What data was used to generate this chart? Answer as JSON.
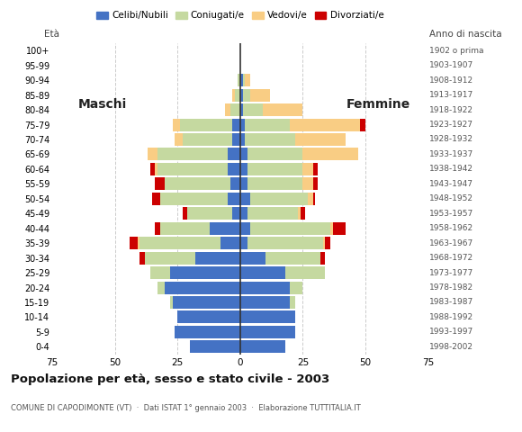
{
  "age_groups": [
    "0-4",
    "5-9",
    "10-14",
    "15-19",
    "20-24",
    "25-29",
    "30-34",
    "35-39",
    "40-44",
    "45-49",
    "50-54",
    "55-59",
    "60-64",
    "65-69",
    "70-74",
    "75-79",
    "80-84",
    "85-89",
    "90-94",
    "95-99",
    "100+"
  ],
  "birth_years": [
    "1998-2002",
    "1993-1997",
    "1988-1992",
    "1983-1987",
    "1978-1982",
    "1973-1977",
    "1968-1972",
    "1963-1967",
    "1958-1962",
    "1953-1957",
    "1948-1952",
    "1943-1947",
    "1938-1942",
    "1933-1937",
    "1928-1932",
    "1923-1927",
    "1918-1922",
    "1913-1917",
    "1908-1912",
    "1903-1907",
    "1902 o prima"
  ],
  "males": {
    "celibe": [
      20,
      26,
      25,
      27,
      30,
      28,
      18,
      8,
      12,
      3,
      5,
      4,
      5,
      5,
      3,
      3,
      0,
      0,
      0,
      0,
      0
    ],
    "coniugato": [
      0,
      0,
      0,
      1,
      3,
      8,
      20,
      32,
      20,
      18,
      27,
      26,
      28,
      28,
      20,
      21,
      4,
      2,
      1,
      0,
      0
    ],
    "vedovo": [
      0,
      0,
      0,
      0,
      0,
      0,
      0,
      1,
      0,
      0,
      0,
      0,
      1,
      4,
      3,
      3,
      2,
      1,
      0,
      0,
      0
    ],
    "divorziato": [
      0,
      0,
      0,
      0,
      0,
      0,
      2,
      3,
      2,
      2,
      3,
      4,
      2,
      0,
      0,
      0,
      0,
      0,
      0,
      0,
      0
    ]
  },
  "females": {
    "nubile": [
      18,
      22,
      22,
      20,
      20,
      18,
      10,
      3,
      4,
      3,
      4,
      3,
      3,
      3,
      2,
      2,
      1,
      1,
      1,
      0,
      0
    ],
    "coniugata": [
      0,
      0,
      0,
      2,
      5,
      16,
      22,
      30,
      32,
      20,
      23,
      22,
      22,
      22,
      20,
      18,
      8,
      3,
      1,
      0,
      0
    ],
    "vedova": [
      0,
      0,
      0,
      0,
      0,
      0,
      0,
      1,
      1,
      1,
      2,
      4,
      4,
      22,
      20,
      28,
      16,
      8,
      2,
      0,
      0
    ],
    "divorziata": [
      0,
      0,
      0,
      0,
      0,
      0,
      2,
      2,
      5,
      2,
      1,
      2,
      2,
      0,
      0,
      2,
      0,
      0,
      0,
      0,
      0
    ]
  },
  "colors": {
    "celibe": "#4472C4",
    "coniugato": "#c5d9a0",
    "vedovo": "#f9cd84",
    "divorziato": "#cc0000"
  },
  "title": "Popolazione per età, sesso e stato civile - 2003",
  "subtitle": "COMUNE DI CAPODIMONTE (VT)  ·  Dati ISTAT 1° gennaio 2003  ·  Elaborazione TUTTITALIA.IT",
  "xlabel_left": "Maschi",
  "xlabel_right": "Femmine",
  "ylabel": "Età",
  "ylabel_right": "Anno di nascita",
  "xlim": 75,
  "legend_labels": [
    "Celibi/Nubili",
    "Coniugati/e",
    "Vedovi/e",
    "Divorziati/e"
  ],
  "bg_color": "#ffffff",
  "grid_color": "#cccccc"
}
